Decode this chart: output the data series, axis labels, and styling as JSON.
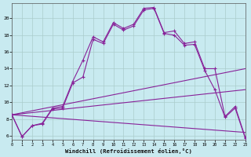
{
  "xlabel": "Windchill (Refroidissement éolien,°C)",
  "bg_color": "#c8eaf0",
  "line_color": "#882299",
  "grid_color": "#aacccc",
  "xlim": [
    0,
    23
  ],
  "ylim": [
    5.5,
    21.8
  ],
  "xticks": [
    0,
    1,
    2,
    3,
    4,
    5,
    6,
    7,
    8,
    9,
    10,
    11,
    12,
    13,
    14,
    15,
    16,
    17,
    18,
    19,
    20,
    21,
    22,
    23
  ],
  "yticks": [
    6,
    8,
    10,
    12,
    14,
    16,
    18,
    20
  ],
  "curve1_x": [
    0,
    1,
    2,
    3,
    4,
    5,
    6,
    7,
    8,
    9,
    10,
    11,
    12,
    13,
    14,
    15,
    16,
    17,
    18,
    19,
    20,
    21,
    22,
    23
  ],
  "curve1_y": [
    8.5,
    5.9,
    7.2,
    7.5,
    9.3,
    9.5,
    12.5,
    15.0,
    17.8,
    17.2,
    19.5,
    18.8,
    19.3,
    21.2,
    21.3,
    18.3,
    18.5,
    17.0,
    17.2,
    14.0,
    14.0,
    8.3,
    9.5,
    5.8
  ],
  "curve2_x": [
    0,
    1,
    2,
    3,
    4,
    5,
    6,
    7,
    8,
    9,
    10,
    11,
    12,
    13,
    14,
    15,
    16,
    17,
    18,
    19,
    20,
    21,
    22,
    23
  ],
  "curve2_y": [
    8.5,
    5.9,
    7.2,
    7.4,
    9.2,
    9.3,
    12.3,
    13.0,
    17.5,
    17.0,
    19.3,
    18.6,
    19.1,
    21.0,
    21.2,
    18.2,
    18.0,
    16.8,
    16.9,
    13.8,
    11.5,
    8.2,
    9.3,
    5.7
  ],
  "line3_x": [
    0,
    23
  ],
  "line3_y": [
    8.5,
    14.0
  ],
  "line4_x": [
    0,
    23
  ],
  "line4_y": [
    8.5,
    11.5
  ],
  "line5_x": [
    0,
    23
  ],
  "line5_y": [
    8.5,
    6.4
  ]
}
